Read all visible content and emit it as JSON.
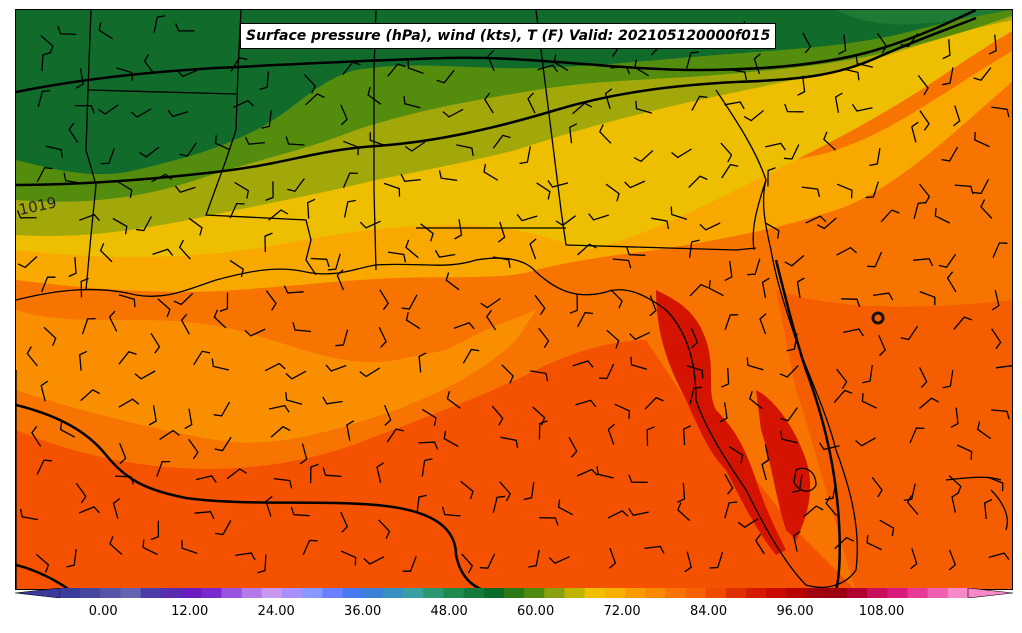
{
  "title": "Surface pressure (hPa), wind (kts), T (F) Valid: 202105120000f015",
  "isobar_label": "1019",
  "colorbar": {
    "ticks": [
      "0.00",
      "12.00",
      "24.00",
      "36.00",
      "48.00",
      "60.00",
      "72.00",
      "84.00",
      "96.00",
      "108.00"
    ],
    "tick_values": [
      0,
      12,
      24,
      36,
      48,
      60,
      72,
      84,
      96,
      108
    ],
    "range": [
      -6,
      120
    ],
    "colors": [
      "#3a3a9a",
      "#46469f",
      "#5555a8",
      "#6464b0",
      "#4c3ca8",
      "#5a2cb0",
      "#6a1ec0",
      "#7a28d0",
      "#9a52e0",
      "#b47ae8",
      "#c898f0",
      "#a890f8",
      "#8898ff",
      "#6b80ff",
      "#4a78f0",
      "#3a82d8",
      "#3890c0",
      "#38a0a0",
      "#2a9870",
      "#1e8a4e",
      "#127a3a",
      "#0a6a28",
      "#2a7a18",
      "#4e8a10",
      "#8aa010",
      "#c0b400",
      "#f0c000",
      "#f8b000",
      "#f89a00",
      "#f88800",
      "#f87400",
      "#f86000",
      "#f04a00",
      "#e03000",
      "#d41a00",
      "#c80a00",
      "#b80000",
      "#a00010",
      "#9a0010",
      "#b00030",
      "#c8105a",
      "#d81a7a",
      "#e83898",
      "#f060b0",
      "#f888c8"
    ]
  },
  "field_colors": {
    "dark_green": "#116b2b",
    "olive_green": "#548d0e",
    "yellow_green": "#9fa70e",
    "yellow": "#edbf00",
    "light_orange": "#f9a900",
    "orange": "#f77400",
    "red_orange": "#f55000",
    "red": "#d01400"
  }
}
